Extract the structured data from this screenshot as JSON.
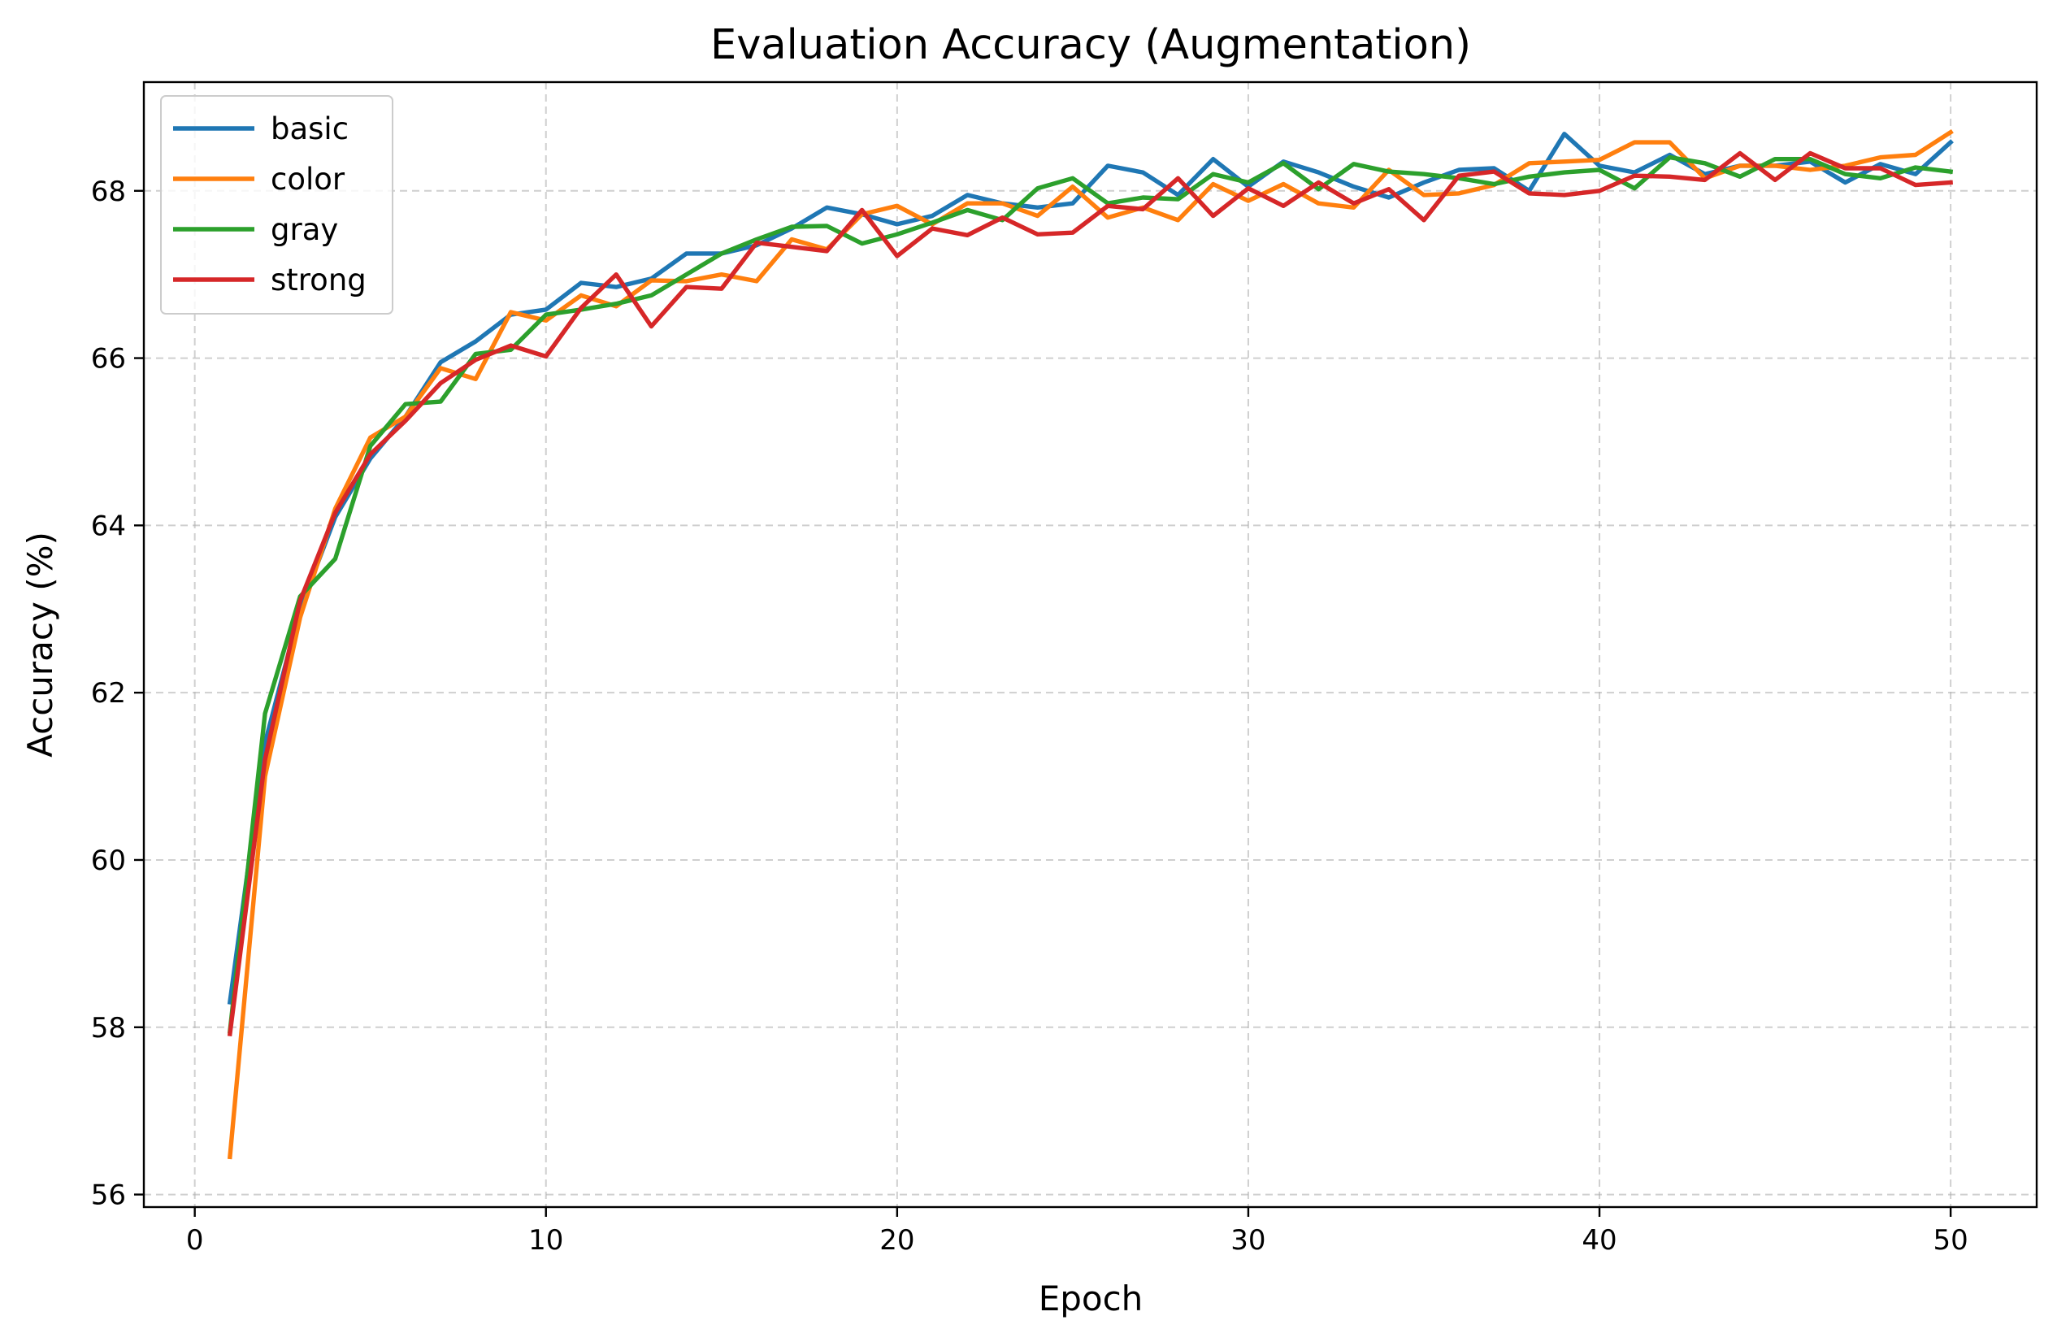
{
  "chart_data": {
    "type": "line",
    "title": "Evaluation Accuracy (Augmentation)",
    "xlabel": "Epoch",
    "ylabel": "Accuracy (%)",
    "xlim": [
      -1.45,
      52.45
    ],
    "ylim": [
      55.85,
      69.3
    ],
    "xticks": [
      0,
      10,
      20,
      30,
      40,
      50
    ],
    "yticks": [
      56,
      58,
      60,
      62,
      64,
      66,
      68
    ],
    "grid": true,
    "legend_position": "upper-left",
    "x": [
      1,
      2,
      3,
      4,
      5,
      6,
      7,
      8,
      9,
      10,
      11,
      12,
      13,
      14,
      15,
      16,
      17,
      18,
      19,
      20,
      21,
      22,
      23,
      24,
      25,
      26,
      27,
      28,
      29,
      30,
      31,
      32,
      33,
      34,
      35,
      36,
      37,
      38,
      39,
      40,
      41,
      42,
      43,
      44,
      45,
      46,
      47,
      48,
      49,
      50
    ],
    "series": [
      {
        "name": "basic",
        "color": "#1f77b4",
        "values": [
          58.3,
          61.4,
          63.0,
          64.1,
          64.8,
          65.3,
          65.95,
          66.2,
          66.52,
          66.58,
          66.9,
          66.85,
          66.95,
          67.25,
          67.25,
          67.35,
          67.55,
          67.8,
          67.72,
          67.6,
          67.7,
          67.95,
          67.85,
          67.8,
          67.85,
          68.3,
          68.22,
          67.95,
          68.38,
          68.05,
          68.35,
          68.22,
          68.05,
          67.92,
          68.1,
          68.25,
          68.27,
          68.0,
          68.68,
          68.3,
          68.22,
          68.43,
          68.2,
          68.3,
          68.3,
          68.35,
          68.1,
          68.32,
          68.2,
          68.58
        ]
      },
      {
        "name": "color",
        "color": "#ff7f0e",
        "values": [
          56.45,
          61.0,
          62.9,
          64.2,
          65.05,
          65.3,
          65.88,
          65.75,
          66.55,
          66.45,
          66.75,
          66.62,
          66.93,
          66.92,
          67.0,
          66.92,
          67.42,
          67.3,
          67.72,
          67.82,
          67.6,
          67.85,
          67.85,
          67.7,
          68.05,
          67.68,
          67.8,
          67.65,
          68.08,
          67.88,
          68.08,
          67.85,
          67.8,
          68.25,
          67.95,
          67.97,
          68.07,
          68.33,
          68.35,
          68.37,
          68.58,
          68.58,
          68.15,
          68.3,
          68.3,
          68.25,
          68.3,
          68.4,
          68.43,
          68.7
        ]
      },
      {
        "name": "gray",
        "color": "#2ca02c",
        "values": [
          57.95,
          61.75,
          63.15,
          63.6,
          64.95,
          65.45,
          65.48,
          66.05,
          66.1,
          66.52,
          66.58,
          66.65,
          66.75,
          67.0,
          67.25,
          67.42,
          67.57,
          67.58,
          67.37,
          67.48,
          67.62,
          67.77,
          67.65,
          68.03,
          68.15,
          67.85,
          67.92,
          67.9,
          68.2,
          68.1,
          68.33,
          68.02,
          68.32,
          68.23,
          68.2,
          68.15,
          68.08,
          68.17,
          68.22,
          68.25,
          68.03,
          68.4,
          68.33,
          68.17,
          68.38,
          68.38,
          68.2,
          68.15,
          68.28,
          68.23
        ]
      },
      {
        "name": "strong",
        "color": "#d62728",
        "values": [
          57.92,
          61.2,
          63.1,
          64.15,
          64.85,
          65.25,
          65.7,
          65.98,
          66.15,
          66.02,
          66.6,
          67.0,
          66.38,
          66.85,
          66.83,
          67.38,
          67.33,
          67.28,
          67.77,
          67.22,
          67.55,
          67.47,
          67.68,
          67.48,
          67.5,
          67.82,
          67.78,
          68.15,
          67.7,
          68.03,
          67.82,
          68.1,
          67.85,
          68.02,
          67.65,
          68.18,
          68.23,
          67.97,
          67.95,
          68.0,
          68.18,
          68.17,
          68.13,
          68.45,
          68.13,
          68.45,
          68.27,
          68.27,
          68.07,
          68.1
        ]
      }
    ]
  }
}
